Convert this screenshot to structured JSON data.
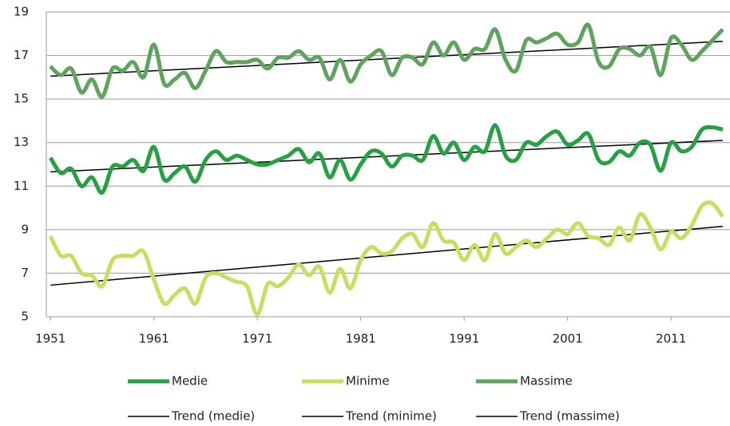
{
  "chart_data": {
    "type": "line",
    "x": [
      1951,
      1952,
      1953,
      1954,
      1955,
      1956,
      1957,
      1958,
      1959,
      1960,
      1961,
      1962,
      1963,
      1964,
      1965,
      1966,
      1967,
      1968,
      1969,
      1970,
      1971,
      1972,
      1973,
      1974,
      1975,
      1976,
      1977,
      1978,
      1979,
      1980,
      1981,
      1982,
      1983,
      1984,
      1985,
      1986,
      1987,
      1988,
      1989,
      1990,
      1991,
      1992,
      1993,
      1994,
      1995,
      1996,
      1997,
      1998,
      1999,
      2000,
      2001,
      2002,
      2003,
      2004,
      2005,
      2006,
      2007,
      2008,
      2009,
      2010,
      2011,
      2012,
      2013,
      2014,
      2015,
      2016
    ],
    "xlim": [
      1950.6,
      2016.7
    ],
    "xticks": [
      1951,
      1961,
      1971,
      1981,
      1991,
      2001,
      2011
    ],
    "ylim": [
      5,
      19
    ],
    "yticks": [
      5,
      7,
      9,
      11,
      13,
      15,
      17,
      19
    ],
    "grid": true,
    "legend": "bottom",
    "series": [
      {
        "name": "Medie",
        "color": "#26a043",
        "values": [
          12.3,
          11.6,
          11.8,
          11.0,
          11.4,
          10.7,
          11.9,
          11.9,
          12.2,
          11.7,
          12.8,
          11.3,
          11.6,
          11.9,
          11.2,
          12.2,
          12.6,
          12.2,
          12.4,
          12.2,
          12.0,
          12.0,
          12.2,
          12.4,
          12.7,
          12.1,
          12.5,
          11.4,
          12.2,
          11.3,
          12.0,
          12.6,
          12.5,
          11.9,
          12.4,
          12.4,
          12.2,
          13.3,
          12.5,
          13.0,
          12.2,
          12.8,
          12.6,
          13.8,
          12.4,
          12.2,
          13.0,
          12.9,
          13.3,
          13.5,
          12.9,
          13.1,
          13.4,
          12.2,
          12.1,
          12.6,
          12.4,
          13.0,
          12.9,
          11.7,
          13.0,
          12.6,
          12.8,
          13.6,
          13.7,
          13.6
        ]
      },
      {
        "name": "Minime",
        "color": "#c9dd62",
        "values": [
          8.7,
          7.8,
          7.8,
          7.0,
          6.9,
          6.4,
          7.6,
          7.8,
          7.8,
          8.0,
          6.7,
          5.6,
          6.0,
          6.3,
          5.6,
          6.8,
          7.0,
          6.8,
          6.6,
          6.4,
          5.1,
          6.5,
          6.4,
          6.8,
          7.4,
          6.9,
          7.3,
          6.1,
          7.2,
          6.3,
          7.6,
          8.2,
          7.9,
          8.0,
          8.6,
          8.8,
          8.2,
          9.3,
          8.5,
          8.4,
          7.6,
          8.3,
          7.6,
          8.8,
          7.9,
          8.2,
          8.5,
          8.2,
          8.6,
          9.0,
          8.8,
          9.3,
          8.7,
          8.6,
          8.3,
          9.1,
          8.5,
          9.7,
          9.1,
          8.1,
          8.9,
          8.6,
          9.2,
          10.1,
          10.2,
          9.6
        ]
      },
      {
        "name": "Massime",
        "color": "#5fa35f",
        "values": [
          16.5,
          16.1,
          16.4,
          15.3,
          15.9,
          15.1,
          16.4,
          16.3,
          16.7,
          16.0,
          17.5,
          15.7,
          15.9,
          16.2,
          15.5,
          16.3,
          17.2,
          16.7,
          16.7,
          16.7,
          16.8,
          16.4,
          16.9,
          16.9,
          17.2,
          16.8,
          16.9,
          15.9,
          16.8,
          15.8,
          16.6,
          17.0,
          17.2,
          16.1,
          16.9,
          16.9,
          16.6,
          17.6,
          17.0,
          17.6,
          16.8,
          17.3,
          17.3,
          18.2,
          16.8,
          16.3,
          17.7,
          17.6,
          17.8,
          18.0,
          17.5,
          17.6,
          18.4,
          16.7,
          16.5,
          17.3,
          17.3,
          17.0,
          17.4,
          16.1,
          17.8,
          17.5,
          16.8,
          17.2,
          17.7,
          18.2
        ]
      },
      {
        "name": "Trend (medie)",
        "color": "#000000",
        "x": [
          1951,
          2016
        ],
        "values": [
          11.65,
          13.1
        ]
      },
      {
        "name": "Trend (minime)",
        "color": "#000000",
        "x": [
          1951,
          2016
        ],
        "values": [
          6.45,
          9.15
        ]
      },
      {
        "name": "Trend (massime)",
        "color": "#000000",
        "x": [
          1951,
          2016
        ],
        "values": [
          16.05,
          17.65
        ]
      }
    ]
  }
}
